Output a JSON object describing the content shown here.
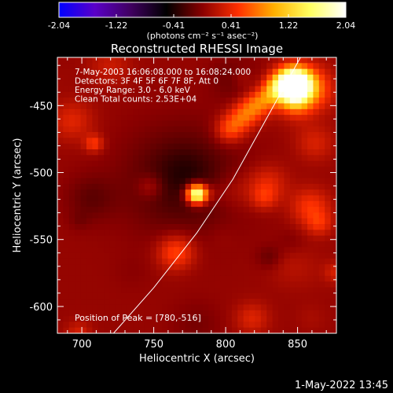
{
  "chart_data": {
    "type": "heatmap",
    "title": "Reconstructed RHESSI Image",
    "colorbar": {
      "ticks": [
        "-2.04",
        "-1.22",
        "-0.41",
        "0.41",
        "1.22",
        "2.04"
      ],
      "min": -2.04,
      "max": 2.04,
      "unit_label": "(photons cm⁻² s⁻¹ asec⁻²)",
      "colormap": [
        "#0000ff",
        "#5a00c8",
        "#400060",
        "#000000",
        "#8a0000",
        "#ff3000",
        "#ffb000",
        "#ffff60",
        "#ffffff"
      ]
    },
    "xlabel": "Heliocentric X (arcsec)",
    "ylabel": "Heliocentric Y (arcsec)",
    "xlim": [
      683,
      877
    ],
    "ylim": [
      -620,
      -414
    ],
    "xticks": [
      "700",
      "750",
      "800",
      "850"
    ],
    "yticks": [
      "-450",
      "-500",
      "-550",
      "-600"
    ],
    "annotations": [
      "7-May-2003 16:06:08.000 to 16:08:24.000",
      "Detectors: 3F 4F 5F 6F 7F 8F, Att 0",
      "Energy Range: 3.0 - 6.0 keV",
      "Clean     Total counts: 2.53E+04"
    ],
    "peak_label": "Position of Peak = [780,-516]",
    "peak": {
      "x": 780,
      "y": -516
    },
    "limb": [
      [
        852,
        -414
      ],
      [
        805,
        -505
      ],
      [
        780,
        -545
      ],
      [
        750,
        -586
      ],
      [
        722,
        -620
      ]
    ]
  },
  "footer_timestamp": "1-May-2022 13:45"
}
